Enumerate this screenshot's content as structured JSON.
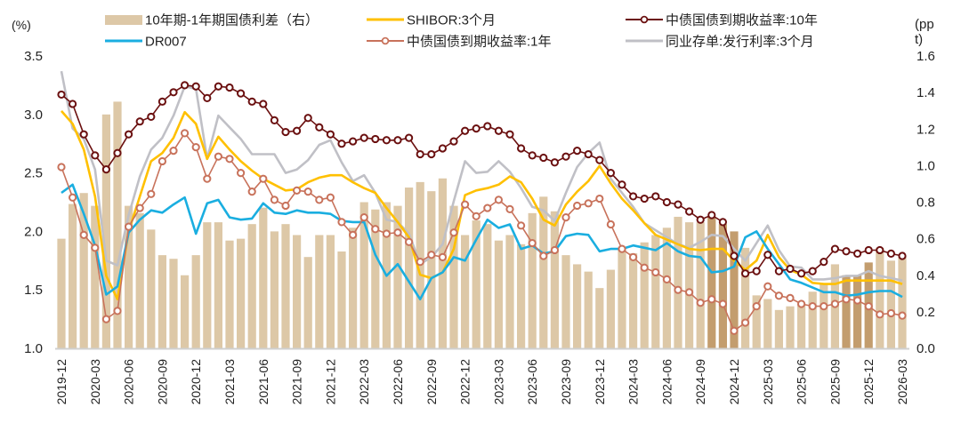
{
  "chart_data": {
    "type": "bar+line",
    "left_axis_label": "(%)",
    "right_axis_label": "(ppt)",
    "ylim_left": [
      1.0,
      3.5
    ],
    "ylim_right": [
      0.0,
      1.6
    ],
    "left_ticks": [
      "1.0",
      "1.5",
      "2.0",
      "2.5",
      "3.0",
      "3.5"
    ],
    "right_ticks": [
      "0.0",
      "0.2",
      "0.4",
      "0.6",
      "0.8",
      "1.0",
      "1.2",
      "1.4",
      "1.6"
    ],
    "grid": false,
    "legend_placement": "top",
    "x_start": "2019-12",
    "x_tick_labels": [
      "2019-12",
      "2020-03",
      "2020-06",
      "2020-09",
      "2020-12",
      "2021-03",
      "2021-06",
      "2021-09",
      "2021-12",
      "2022-03",
      "2022-06",
      "2022-09",
      "2022-12",
      "2023-03",
      "2023-06",
      "2023-09",
      "2023-12",
      "2024-03",
      "2024-06",
      "2024-09",
      "2024-12",
      "2025-03",
      "2025-06",
      "2025-09",
      "2025-12",
      "2026-03"
    ],
    "highlighted_months": [
      "2024-10",
      "2024-11",
      "2024-12",
      "2025-10",
      "2025-11",
      "2025-12"
    ],
    "bar_series": {
      "name": "10年期-1年期国债利差（右）",
      "axis": "right",
      "color": "#DDC8A7",
      "highlight_color": "#C39D6E",
      "values": [
        0.6,
        0.79,
        0.85,
        0.78,
        1.28,
        1.35,
        0.78,
        0.74,
        0.65,
        0.51,
        0.49,
        0.4,
        0.51,
        0.69,
        0.69,
        0.59,
        0.6,
        0.68,
        0.77,
        0.64,
        0.68,
        0.62,
        0.5,
        0.62,
        0.62,
        0.53,
        0.66,
        0.8,
        0.76,
        0.8,
        0.78,
        0.88,
        0.91,
        0.86,
        0.93,
        0.78,
        0.62,
        0.7,
        0.68,
        0.59,
        0.62,
        0.57,
        0.74,
        0.83,
        0.75,
        0.51,
        0.46,
        0.42,
        0.33,
        0.43,
        0.55,
        0.52,
        0.58,
        0.62,
        0.66,
        0.72,
        0.69,
        0.69,
        0.72,
        0.68,
        0.64,
        0.55,
        0.29,
        0.27,
        0.21,
        0.23,
        0.25,
        0.31,
        0.35,
        0.46,
        0.4,
        0.4,
        0.47,
        0.55,
        0.48,
        0.5
      ]
    },
    "line_series": [
      {
        "name": "SHIBOR:3个月",
        "axis": "left",
        "color": "#FFC000",
        "markers": false,
        "values": [
          3.03,
          2.92,
          2.7,
          2.3,
          1.62,
          1.42,
          2.0,
          2.3,
          2.6,
          2.67,
          2.8,
          3.02,
          2.92,
          2.62,
          2.81,
          2.7,
          2.6,
          2.52,
          2.45,
          2.4,
          2.35,
          2.36,
          2.42,
          2.46,
          2.48,
          2.48,
          2.42,
          2.37,
          2.33,
          2.2,
          2.08,
          1.95,
          1.63,
          1.6,
          1.65,
          1.85,
          2.31,
          2.35,
          2.37,
          2.4,
          2.47,
          2.42,
          2.28,
          2.1,
          2.05,
          2.23,
          2.34,
          2.43,
          2.56,
          2.41,
          2.28,
          2.18,
          2.07,
          1.97,
          1.93,
          1.89,
          1.85,
          1.84,
          1.85,
          1.85,
          1.75,
          1.67,
          1.75,
          1.97,
          1.78,
          1.67,
          1.63,
          1.56,
          1.55,
          1.55,
          1.58,
          1.58,
          1.58,
          1.58,
          1.58,
          1.55
        ]
      },
      {
        "name": "中债国债到期收益率:10年",
        "axis": "left",
        "color": "#6B1010",
        "markers": true,
        "values": [
          3.17,
          3.09,
          2.83,
          2.65,
          2.53,
          2.67,
          2.83,
          2.94,
          2.98,
          3.11,
          3.19,
          3.25,
          3.24,
          3.14,
          3.24,
          3.23,
          3.18,
          3.11,
          3.09,
          2.95,
          2.85,
          2.86,
          2.97,
          2.89,
          2.83,
          2.75,
          2.77,
          2.8,
          2.79,
          2.78,
          2.78,
          2.8,
          2.66,
          2.66,
          2.71,
          2.77,
          2.86,
          2.88,
          2.9,
          2.86,
          2.83,
          2.71,
          2.65,
          2.63,
          2.59,
          2.64,
          2.69,
          2.66,
          2.61,
          2.5,
          2.4,
          2.3,
          2.28,
          2.3,
          2.25,
          2.23,
          2.17,
          2.1,
          2.14,
          2.08,
          1.79,
          1.64,
          1.66,
          1.8,
          1.66,
          1.68,
          1.64,
          1.66,
          1.74,
          1.85,
          1.83,
          1.81,
          1.84,
          1.84,
          1.81,
          1.79
        ]
      },
      {
        "name": "DR007",
        "axis": "left",
        "color": "#1AAEE0",
        "markers": false,
        "values": [
          2.33,
          2.4,
          2.15,
          1.88,
          1.46,
          1.53,
          1.99,
          2.1,
          2.18,
          2.16,
          2.23,
          2.29,
          1.98,
          2.24,
          2.27,
          2.12,
          2.1,
          2.11,
          2.24,
          2.16,
          2.15,
          2.18,
          2.16,
          2.16,
          2.15,
          2.09,
          2.08,
          2.08,
          1.8,
          1.62,
          1.72,
          1.57,
          1.42,
          1.6,
          1.65,
          1.78,
          1.75,
          1.93,
          2.1,
          2.03,
          2.06,
          1.85,
          1.88,
          1.81,
          1.83,
          1.96,
          1.98,
          1.97,
          1.83,
          1.85,
          1.85,
          1.88,
          1.86,
          1.84,
          1.9,
          1.83,
          1.79,
          1.78,
          1.65,
          1.66,
          1.7,
          1.95,
          2.0,
          1.85,
          1.72,
          1.59,
          1.56,
          1.52,
          1.48,
          1.48,
          1.45,
          1.46,
          1.48,
          1.49,
          1.49,
          1.44
        ]
      },
      {
        "name": "中债国债到期收益率:1年",
        "axis": "left",
        "color": "#C8725B",
        "markers": true,
        "values": [
          2.55,
          2.29,
          1.97,
          1.86,
          1.25,
          1.32,
          2.04,
          2.2,
          2.32,
          2.6,
          2.69,
          2.84,
          2.72,
          2.45,
          2.64,
          2.62,
          2.5,
          2.34,
          2.45,
          2.27,
          2.22,
          2.35,
          2.34,
          2.27,
          2.29,
          2.08,
          1.97,
          2.12,
          2.02,
          1.98,
          1.99,
          1.91,
          1.74,
          1.8,
          1.78,
          1.99,
          2.23,
          2.13,
          2.2,
          2.27,
          2.19,
          2.05,
          1.9,
          1.79,
          1.84,
          2.12,
          2.22,
          2.24,
          2.28,
          2.06,
          1.85,
          1.78,
          1.69,
          1.65,
          1.59,
          1.5,
          1.48,
          1.39,
          1.42,
          1.38,
          1.15,
          1.22,
          1.36,
          1.53,
          1.45,
          1.43,
          1.38,
          1.36,
          1.36,
          1.38,
          1.42,
          1.41,
          1.36,
          1.29,
          1.3,
          1.28
        ]
      },
      {
        "name": "同业存单:发行利率:3个月",
        "axis": "left",
        "color": "#C0C0C6",
        "markers": false,
        "values": [
          3.37,
          2.88,
          2.79,
          2.53,
          1.75,
          1.71,
          2.14,
          2.47,
          2.7,
          2.8,
          2.99,
          3.24,
          3.22,
          2.62,
          2.99,
          2.89,
          2.79,
          2.66,
          2.66,
          2.66,
          2.5,
          2.53,
          2.61,
          2.74,
          2.78,
          2.59,
          2.43,
          2.48,
          2.33,
          2.1,
          2.08,
          1.98,
          1.72,
          1.78,
          1.89,
          2.26,
          2.6,
          2.5,
          2.51,
          2.6,
          2.51,
          2.37,
          2.21,
          2.18,
          2.09,
          2.33,
          2.55,
          2.67,
          2.76,
          2.45,
          2.33,
          2.21,
          2.07,
          2.01,
          1.95,
          1.89,
          1.86,
          1.91,
          1.97,
          1.96,
          1.85,
          1.75,
          1.9,
          2.05,
          1.84,
          1.7,
          1.69,
          1.59,
          1.59,
          1.6,
          1.62,
          1.62,
          1.66,
          1.62,
          1.6,
          1.58
        ]
      }
    ]
  }
}
